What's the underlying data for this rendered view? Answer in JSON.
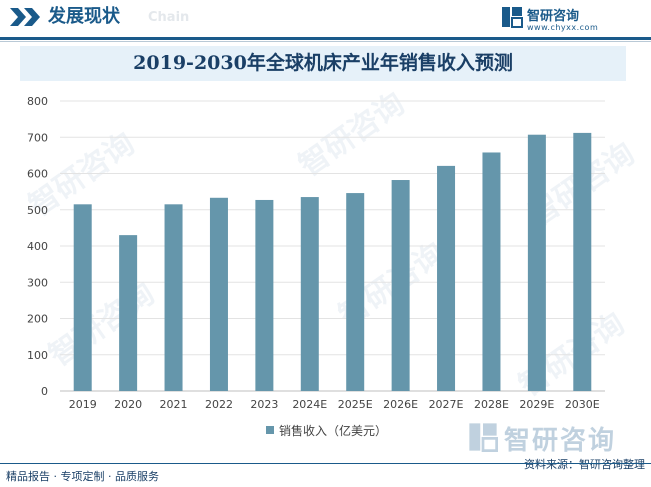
{
  "header": {
    "section_title": "发展现状",
    "section_title_en": "Chain",
    "brand_name": "智研咨询",
    "brand_url": "www.chyxx.com"
  },
  "watermark": {
    "text": "智研咨询"
  },
  "footer": {
    "tagline": "精品报告 · 专项定制 · 品质服务",
    "source": "资料来源：智研咨询整理"
  },
  "chart_data": {
    "type": "bar",
    "title": "2019-2030年全球机床产业年销售收入预测",
    "categories": [
      "2019",
      "2020",
      "2021",
      "2022",
      "2023",
      "2024E",
      "2025E",
      "2026E",
      "2027E",
      "2028E",
      "2029E",
      "2030E"
    ],
    "series": [
      {
        "name": "销售收入（亿美元）",
        "values": [
          515,
          430,
          515,
          533,
          527,
          535,
          546,
          582,
          621,
          658,
          707,
          712
        ],
        "color": "#6596ab"
      }
    ],
    "ylim": [
      0,
      800
    ],
    "yticks": [
      0,
      100,
      200,
      300,
      400,
      500,
      600,
      700,
      800
    ],
    "grid": true,
    "legend_position": "bottom",
    "xlabel": "",
    "ylabel": ""
  }
}
